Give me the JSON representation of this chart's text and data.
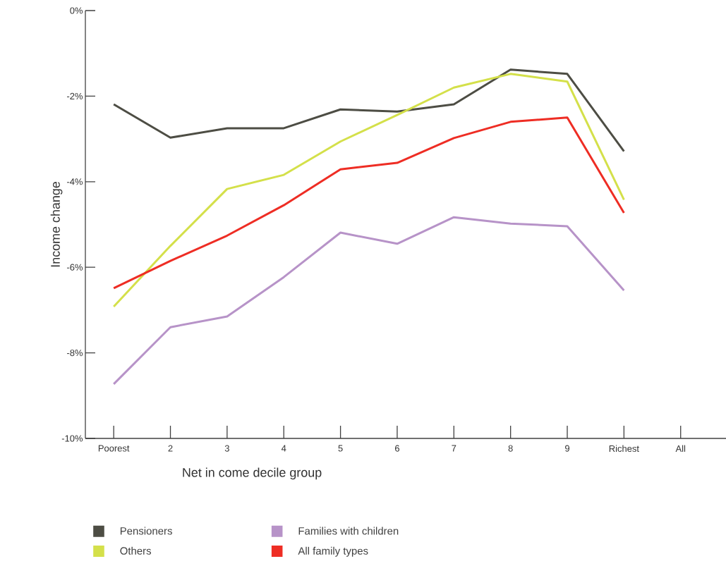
{
  "chart_data": {
    "type": "line",
    "xlabel": "Net in come decile group",
    "ylabel": "Income change",
    "categories": [
      "Poorest",
      "2",
      "3",
      "4",
      "5",
      "6",
      "7",
      "8",
      "9",
      "Richest",
      "All"
    ],
    "ylim": [
      -10,
      0
    ],
    "yticks": [
      {
        "value": -10,
        "label": "-10%"
      },
      {
        "value": -8,
        "label": "-8%"
      },
      {
        "value": -6,
        "label": "-6%"
      },
      {
        "value": -4,
        "label": "-4%"
      },
      {
        "value": -2,
        "label": "-2%"
      },
      {
        "value": 0,
        "label": "0%"
      }
    ],
    "series": [
      {
        "name": "Pensioners",
        "color": "#4d4d44",
        "values": [
          -2.19,
          -2.97,
          -2.75,
          -2.75,
          -2.31,
          -2.36,
          -2.19,
          -1.38,
          -1.48,
          -3.29,
          null
        ]
      },
      {
        "name": "Others",
        "color": "#d4e04a",
        "values": [
          -6.92,
          -5.5,
          -4.17,
          -3.84,
          -3.06,
          -2.44,
          -1.8,
          -1.48,
          -1.66,
          -4.42,
          null
        ]
      },
      {
        "name": "Families with children",
        "color": "#b793c8",
        "values": [
          -8.73,
          -7.4,
          -7.15,
          -6.23,
          -5.19,
          -5.45,
          -4.83,
          -4.98,
          -5.04,
          -6.54,
          null
        ]
      },
      {
        "name": "All family types",
        "color": "#ee2d24",
        "values": [
          -6.49,
          -5.85,
          -5.26,
          -4.55,
          -3.71,
          -3.56,
          -2.98,
          -2.6,
          -2.5,
          -4.73,
          null
        ]
      }
    ],
    "legend": "bottom",
    "grid": false,
    "marker": "none",
    "line_style": "solid"
  }
}
